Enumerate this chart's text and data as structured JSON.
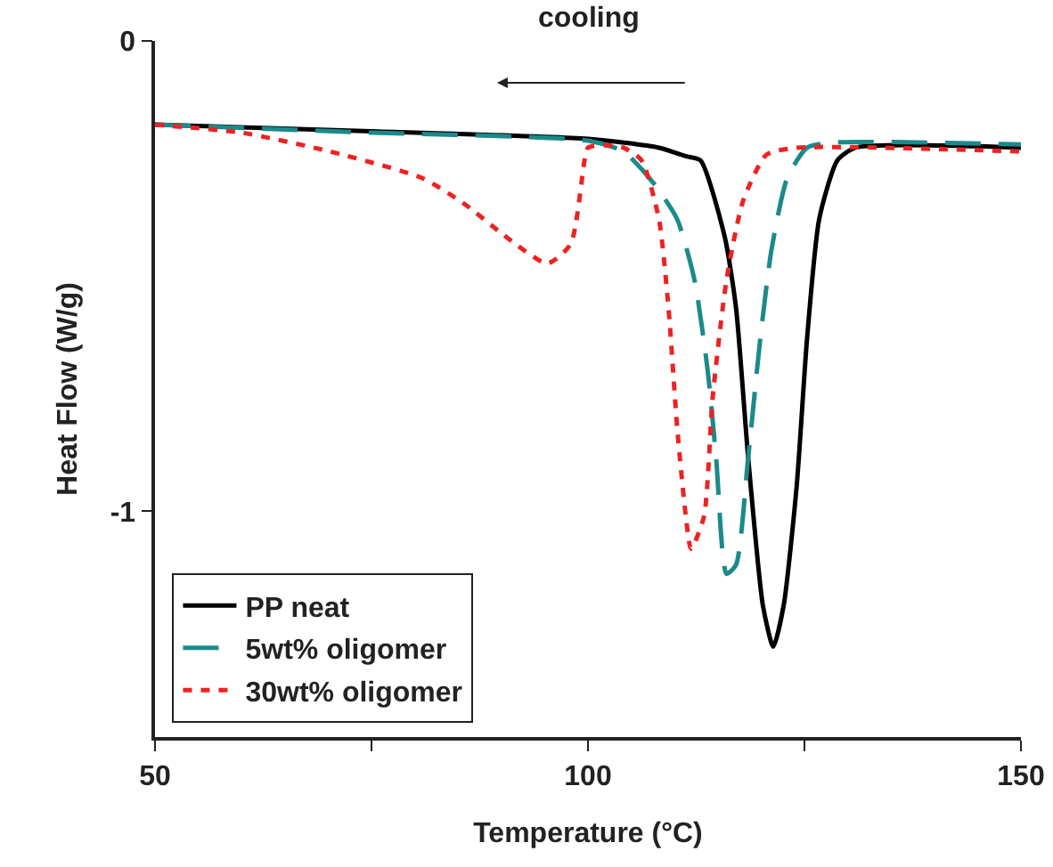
{
  "chart_data": {
    "type": "line",
    "xlabel": "Temperature (°C)",
    "ylabel": "Heat Flow (W/g)",
    "annotations": [
      "cooling"
    ],
    "xlim": [
      50,
      150
    ],
    "xticks": [
      50,
      {
        "value": 75,
        "label": null
      },
      100,
      {
        "value": 125,
        "label": null
      },
      150
    ],
    "ylim": [
      -1.48,
      0
    ],
    "yticks": [
      {
        "value": 0,
        "label": "0"
      },
      {
        "value": -1,
        "label": "-1"
      }
    ],
    "grid": false,
    "legend": "bottom left",
    "marker": "none",
    "series": [
      {
        "name": "PP neat",
        "color": "#000000",
        "line_style": "solid",
        "x": [
          50,
          75,
          100,
          108.2,
          111.3,
          113,
          115.8,
          117.1,
          118.5,
          120.2,
          121.4,
          122.6,
          124.1,
          125.3,
          126.7,
          128.8,
          130.9,
          150
        ],
        "values": [
          -0.178,
          -0.192,
          -0.208,
          -0.227,
          -0.245,
          -0.254,
          -0.417,
          -0.568,
          -0.886,
          -1.2,
          -1.288,
          -1.2,
          -0.947,
          -0.633,
          -0.379,
          -0.254,
          -0.227,
          -0.227
        ]
      },
      {
        "name": "5wt% oligomer",
        "color": "#1a8a8a",
        "line_style": "dashed",
        "x": [
          50,
          75,
          100,
          104.1,
          107.6,
          110.3,
          112.3,
          113.8,
          114.8,
          116,
          117.1,
          118.5,
          119.9,
          121.2,
          123,
          125.3,
          128.2,
          150
        ],
        "values": [
          -0.178,
          -0.195,
          -0.212,
          -0.235,
          -0.303,
          -0.379,
          -0.508,
          -0.697,
          -0.886,
          -1.133,
          -1.114,
          -0.886,
          -0.633,
          -0.443,
          -0.292,
          -0.227,
          -0.216,
          -0.22
        ]
      },
      {
        "name": "30wt% oligomer",
        "color": "#ee2222",
        "line_style": "dotted",
        "x": [
          50,
          60,
          70.2,
          80.9,
          86,
          90.3,
          95.3,
          98,
          99.6,
          100,
          102,
          104.1,
          106.2,
          108.2,
          109.3,
          110.3,
          111.3,
          111.9,
          113.4,
          114.4,
          116,
          117.9,
          120.6,
          124.1,
          150
        ],
        "values": [
          -0.178,
          -0.195,
          -0.235,
          -0.292,
          -0.35,
          -0.413,
          -0.473,
          -0.432,
          -0.254,
          -0.227,
          -0.222,
          -0.227,
          -0.254,
          -0.379,
          -0.568,
          -0.822,
          -1.011,
          -1.08,
          -1.011,
          -0.758,
          -0.508,
          -0.341,
          -0.242,
          -0.227,
          -0.235
        ]
      }
    ]
  }
}
